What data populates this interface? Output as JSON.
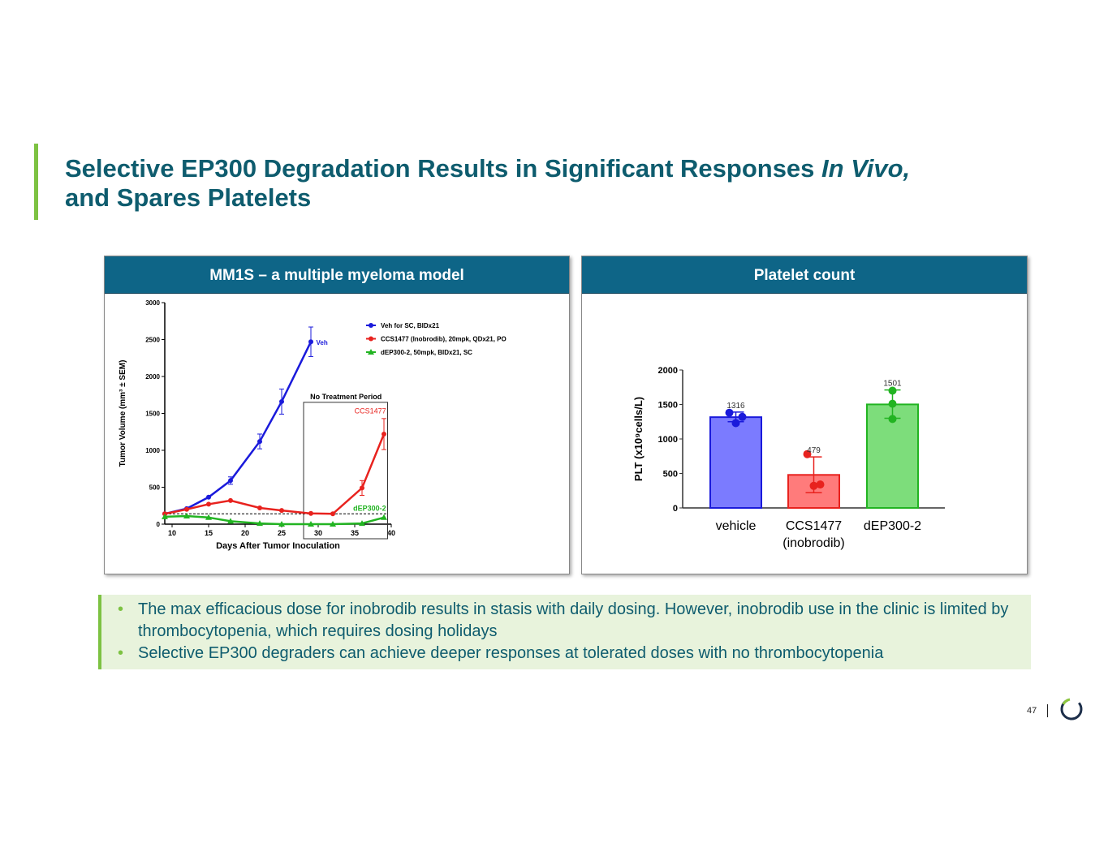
{
  "title": {
    "line1_plain": "Selective EP300 Degradation Results in Significant Responses ",
    "line1_italic": "In Vivo,",
    "line2": "and Spares Platelets"
  },
  "panels": {
    "left_title": "MM1S – a multiple myeloma model",
    "right_title": "Platelet count"
  },
  "bullets": [
    "The max efficacious dose for inobrodib results in stasis with daily dosing. However, inobrodib use in the clinic is limited by thrombocytopenia, which requires dosing holidays",
    "Selective EP300 degraders can achieve deeper responses at tolerated doses with no thrombocytopenia"
  ],
  "page_number": "47",
  "colors": {
    "title": "#0e5c6e",
    "accent": "#7dc242",
    "header": "#0e6587",
    "blue": "#1a1adb",
    "red": "#e8221e",
    "green": "#22b422"
  },
  "chart_data": [
    {
      "type": "line",
      "xlabel": "Days After Tumor Inoculation",
      "ylabel": "Tumor Volume (mm³ ± SEM)",
      "xlim": [
        9,
        40
      ],
      "ylim": [
        0,
        3000
      ],
      "xticks": [
        10,
        15,
        20,
        25,
        30,
        35,
        40
      ],
      "yticks": [
        0,
        500,
        1000,
        1500,
        2000,
        2500,
        3000
      ],
      "legend": "top-right",
      "series": [
        {
          "name": "Veh for SC, BIDx21",
          "label": "Veh",
          "color": "#1a1adb",
          "marker": "circle",
          "x": [
            9,
            12,
            15,
            18,
            22,
            25,
            29
          ],
          "y": [
            140,
            210,
            365,
            590,
            1120,
            1660,
            2470
          ],
          "sem": [
            20,
            20,
            25,
            50,
            100,
            170,
            200
          ]
        },
        {
          "name": "CCS1477 (Inobrodib), 20mpk, QDx21, PO",
          "label": "CCS1477",
          "color": "#e8221e",
          "marker": "circle",
          "x": [
            9,
            12,
            15,
            18,
            22,
            25,
            29,
            32,
            36,
            39
          ],
          "y": [
            140,
            200,
            270,
            320,
            220,
            185,
            145,
            140,
            490,
            1220
          ],
          "sem": [
            10,
            15,
            15,
            15,
            15,
            15,
            10,
            20,
            100,
            210
          ]
        },
        {
          "name": "dEP300-2, 50mpk, BIDx21, SC",
          "label": "dEP300-2",
          "color": "#22b422",
          "marker": "triangle",
          "x": [
            9,
            12,
            15,
            18,
            22,
            25,
            29,
            32,
            36,
            39
          ],
          "y": [
            100,
            110,
            90,
            40,
            10,
            0,
            0,
            0,
            10,
            90
          ],
          "sem": [
            10,
            10,
            10,
            10,
            5,
            0,
            0,
            0,
            5,
            10
          ]
        }
      ],
      "reference_line": 140,
      "annotation": {
        "text": "No Treatment Period",
        "x_range": [
          28,
          39.5
        ]
      }
    },
    {
      "type": "bar",
      "ylabel": "PLT (x10⁹cells/L)",
      "ylim": [
        0,
        2000
      ],
      "yticks": [
        0,
        500,
        1000,
        1500,
        2000
      ],
      "categories": [
        "vehicle",
        "CCS1477",
        "dEP300-2"
      ],
      "category_sublabels": [
        "",
        "(inobrodib)",
        ""
      ],
      "values": [
        1316,
        479,
        1501
      ],
      "data_labels": [
        "1316",
        "479",
        "1501"
      ],
      "colors": [
        "#7b7bff",
        "#ff7b7b",
        "#7ddd7b"
      ],
      "edge_colors": [
        "#1a1adb",
        "#e8221e",
        "#22b422"
      ],
      "points": [
        [
          1380,
          1230,
          1320
        ],
        [
          780,
          320,
          340
        ],
        [
          1700,
          1510,
          1290
        ]
      ],
      "error": [
        [
          1250,
          1390
        ],
        [
          220,
          740
        ],
        [
          1300,
          1710
        ]
      ]
    }
  ]
}
